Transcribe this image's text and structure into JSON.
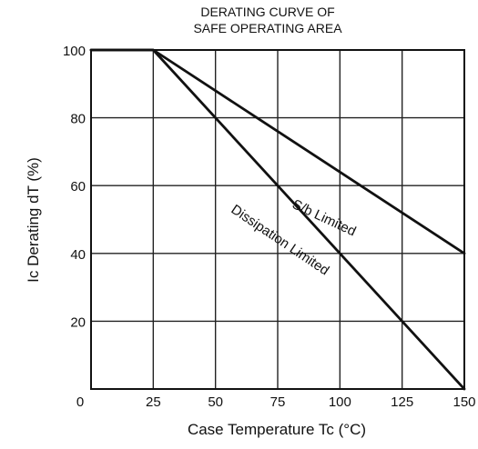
{
  "chart_data": {
    "type": "line",
    "title": [
      "DERATING CURVE OF",
      "SAFE OPERATING AREA"
    ],
    "xlabel": "Case Temperature  Tc  (°C)",
    "ylabel": "Ic Derating  dT  (%)",
    "xlim": [
      0,
      150
    ],
    "ylim": [
      0,
      100
    ],
    "xticks": [
      0,
      25,
      50,
      75,
      100,
      125,
      150
    ],
    "yticks": [
      0,
      20,
      40,
      60,
      80,
      100
    ],
    "x_tick_labels": [
      "0",
      "25",
      "50",
      "75",
      "100",
      "125",
      "150"
    ],
    "y_tick_labels": [
      "0",
      "20",
      "40",
      "60",
      "80",
      "100"
    ],
    "grid": true,
    "series": [
      {
        "name": "S/b Limited",
        "x": [
          0,
          25,
          150
        ],
        "y": [
          100,
          100,
          40
        ]
      },
      {
        "name": "Dissipation Limited",
        "x": [
          0,
          25,
          150
        ],
        "y": [
          100,
          100,
          0
        ]
      }
    ]
  }
}
